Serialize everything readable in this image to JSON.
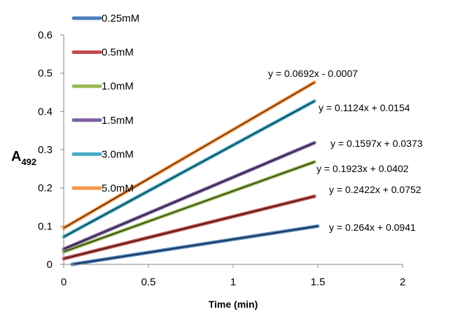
{
  "chart_data": {
    "type": "line",
    "xlabel": "Time (min)",
    "ylabel": "A",
    "ylabel_sub": "492",
    "xlim": [
      0,
      2
    ],
    "ylim": [
      0,
      0.6
    ],
    "x_ticks": [
      "0",
      "0.5",
      "1",
      "1.5",
      "2"
    ],
    "y_ticks": [
      "0",
      "0.1",
      "0.2",
      "0.3",
      "0.4",
      "0.5",
      "0.6"
    ],
    "grid": false,
    "legend_position": "top-left",
    "series": [
      {
        "name": "0.25mM",
        "color": "#4a7ebb",
        "x": [
          0.05,
          1.5
        ],
        "y": [
          0.0,
          0.1
        ]
      },
      {
        "name": "0.5mM",
        "color": "#be4b48",
        "x": [
          0.0,
          1.48
        ],
        "y": [
          0.015,
          0.178
        ]
      },
      {
        "name": "1.0mM",
        "color": "#98b954",
        "x": [
          0.0,
          1.48
        ],
        "y": [
          0.033,
          0.268
        ]
      },
      {
        "name": "1.5mM",
        "color": "#7d60a0",
        "x": [
          0.0,
          1.48
        ],
        "y": [
          0.04,
          0.318
        ]
      },
      {
        "name": "3.0mM",
        "color": "#46aac5",
        "x": [
          0.0,
          1.48
        ],
        "y": [
          0.072,
          0.427
        ]
      },
      {
        "name": "5.0mM",
        "color": "#f79646",
        "x": [
          0.0,
          1.48
        ],
        "y": [
          0.095,
          0.476
        ]
      }
    ],
    "equations": [
      "y = 0.0692x - 0.0007",
      "y = 0.1124x + 0.0154",
      "y = 0.1597x + 0.0373",
      "y = 0.1923x + 0.0402",
      "y = 0.2422x + 0.0752",
      "y = 0.264x + 0.0941"
    ]
  }
}
